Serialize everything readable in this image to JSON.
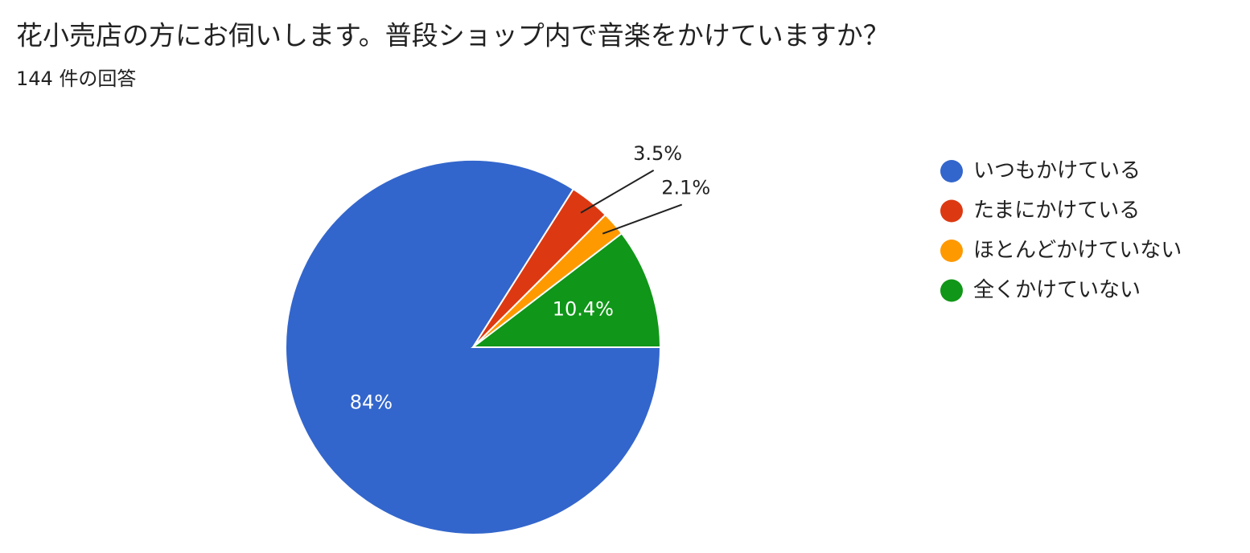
{
  "chart_data": {
    "type": "pie",
    "title": "花小売店の方にお伺いします。普段ショップ内で音楽をかけていますか？",
    "subtitle": "144 件の回答",
    "categories": [
      "いつもかけている",
      "たまにかけている",
      "ほとんどかけていない",
      "全くかけていない"
    ],
    "values": [
      84,
      3.5,
      2.1,
      10.4
    ],
    "value_labels": [
      "84%",
      "3.5%",
      "2.1%",
      "10.4%"
    ],
    "colors": [
      "#3366cc",
      "#dc3912",
      "#ff9900",
      "#109618"
    ],
    "legend": "right"
  }
}
